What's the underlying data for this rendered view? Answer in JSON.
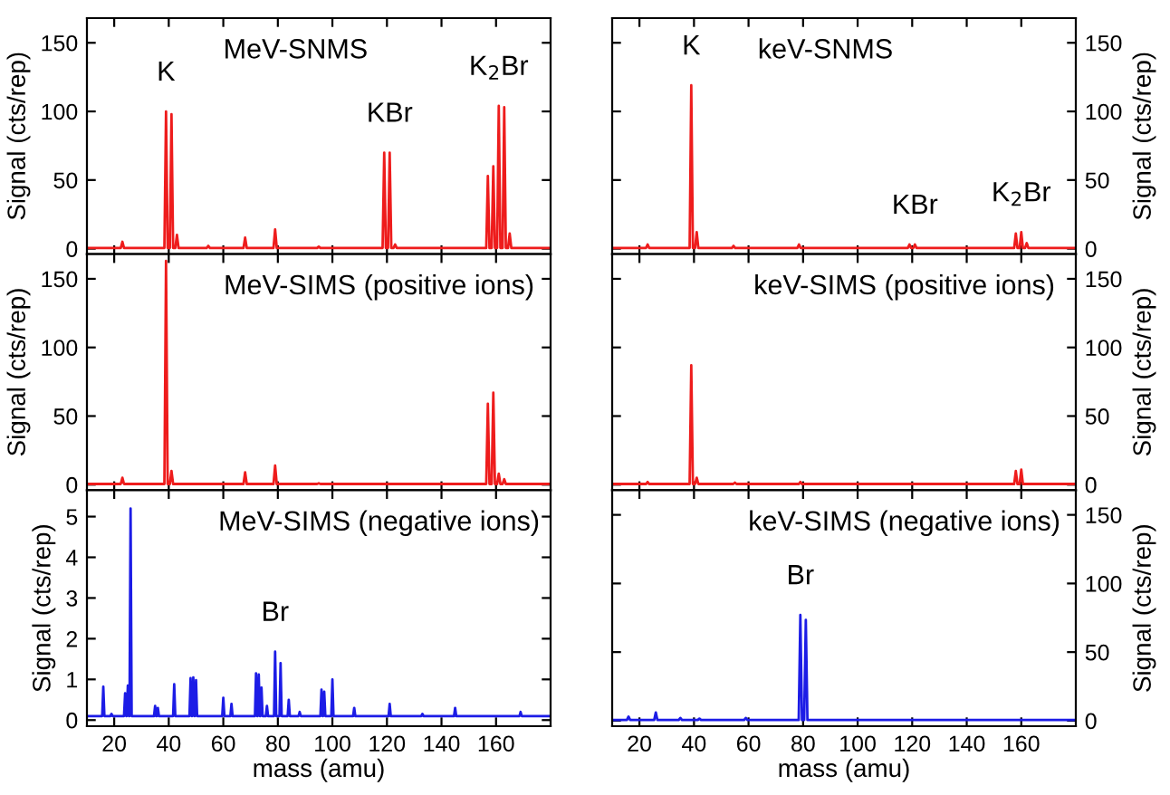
{
  "chart_data": [
    {
      "type": "line",
      "title": "MeV-SNMS",
      "ylabel": "Signal (cts/rep)",
      "xlim": [
        10,
        180
      ],
      "xticks": [
        {
          "value": 20,
          "label": null
        },
        {
          "value": 40,
          "label": null
        },
        {
          "value": 60,
          "label": null
        },
        {
          "value": 80,
          "label": null
        },
        {
          "value": 100,
          "label": null
        },
        {
          "value": 120,
          "label": null
        },
        {
          "value": 140,
          "label": null
        },
        {
          "value": 160,
          "label": null
        }
      ],
      "ylim": [
        -4,
        168
      ],
      "yticks": [
        0,
        50,
        100,
        150
      ],
      "tick_labels": "y",
      "grid": false,
      "legend": false,
      "annotations": [
        {
          "text": "K",
          "x": 39,
          "y": 100
        },
        {
          "text": "KBr",
          "x": 121,
          "y": 70
        },
        {
          "text": "K$_{2}$Br",
          "x": 161,
          "y": 104
        }
      ],
      "series": [
        {
          "color": "#ee1c1c",
          "x": [
            10,
            22.4,
            23,
            23.6,
            38.4,
            39,
            39.6,
            40.4,
            41,
            41.6,
            42.4,
            43,
            43.6,
            53.9,
            54.5,
            55.1,
            67.4,
            68,
            68.6,
            78.4,
            79,
            79.6,
            94.4,
            95,
            95.6,
            118.4,
            119,
            119.6,
            120.4,
            121,
            121.6,
            122.4,
            123,
            123.6,
            156.4,
            157,
            157.6,
            158.4,
            159,
            159.6,
            160.4,
            161,
            161.6,
            162.4,
            163,
            163.6,
            164.4,
            165,
            165.6,
            180
          ],
          "values": [
            0.5,
            0.5,
            5,
            0.5,
            0.5,
            100,
            0.5,
            0.5,
            98,
            0.5,
            0.5,
            10,
            0.5,
            0.5,
            2,
            0.5,
            0.5,
            8,
            0.5,
            0.5,
            14,
            0.5,
            0.5,
            1.5,
            0.5,
            0.5,
            70,
            0.5,
            0.5,
            70,
            0.5,
            0.5,
            3,
            0.5,
            0.5,
            53,
            0.5,
            0.5,
            60,
            0.5,
            0.5,
            104,
            0.5,
            0.5,
            103,
            0.5,
            0.5,
            11,
            0.5,
            0.5
          ]
        }
      ]
    },
    {
      "type": "line",
      "title": "keV-SNMS",
      "ylabel": "Signal (cts/rep)",
      "xlim": [
        10,
        180
      ],
      "xticks": [
        {
          "value": 20,
          "label": null
        },
        {
          "value": 40,
          "label": null
        },
        {
          "value": 60,
          "label": null
        },
        {
          "value": 80,
          "label": null
        },
        {
          "value": 100,
          "label": null
        },
        {
          "value": 120,
          "label": null
        },
        {
          "value": 140,
          "label": null
        },
        {
          "value": 160,
          "label": null
        }
      ],
      "ylim": [
        -4,
        168
      ],
      "yticks": [
        0,
        50,
        100,
        150
      ],
      "tick_labels": "y",
      "grid": false,
      "legend": false,
      "annotations": [
        {
          "text": "K",
          "x": 39,
          "y": 119
        },
        {
          "text": "KBr",
          "x": 121,
          "y": 3
        },
        {
          "text": "K$_{2}$Br",
          "x": 160,
          "y": 12
        }
      ],
      "series": [
        {
          "color": "#ee1c1c",
          "x": [
            10,
            22.4,
            23,
            23.6,
            38.4,
            39,
            39.6,
            40.4,
            41,
            41.6,
            53.9,
            54.5,
            55.1,
            77.9,
            78.5,
            79.1,
            118.4,
            119,
            119.6,
            120.4,
            121,
            121.6,
            157.4,
            158,
            158.6,
            159.4,
            160,
            160.6,
            161.4,
            162,
            162.6,
            180
          ],
          "values": [
            0.5,
            0.5,
            3,
            0.5,
            0.5,
            119,
            0.5,
            0.5,
            12,
            0.5,
            0.5,
            2,
            0.5,
            0.5,
            3,
            0.5,
            0.5,
            3,
            0.5,
            0.5,
            3,
            0.5,
            0.5,
            11,
            0.5,
            0.5,
            12,
            0.5,
            0.5,
            4,
            0.5,
            0.5
          ]
        }
      ]
    },
    {
      "type": "line",
      "title": "MeV-SIMS (positive ions)",
      "ylabel": "Signal (cts/rep)",
      "xlim": [
        10,
        180
      ],
      "xticks": [
        {
          "value": 20,
          "label": null
        },
        {
          "value": 40,
          "label": null
        },
        {
          "value": 60,
          "label": null
        },
        {
          "value": 80,
          "label": null
        },
        {
          "value": 100,
          "label": null
        },
        {
          "value": 120,
          "label": null
        },
        {
          "value": 140,
          "label": null
        },
        {
          "value": 160,
          "label": null
        }
      ],
      "ylim": [
        -4,
        168
      ],
      "yticks": [
        0,
        50,
        100,
        150
      ],
      "tick_labels": "y",
      "grid": false,
      "legend": false,
      "series": [
        {
          "color": "#ee1c1c",
          "x": [
            10,
            22.4,
            23,
            23.6,
            38.4,
            39,
            39.6,
            40.4,
            41,
            41.6,
            67.4,
            68,
            68.6,
            78.4,
            79,
            79.6,
            94.4,
            95,
            95.6,
            156.4,
            157,
            157.6,
            158.4,
            159,
            159.6,
            160.4,
            161,
            161.6,
            162.4,
            163,
            163.6,
            180
          ],
          "values": [
            0.5,
            0.5,
            5,
            0.5,
            0.5,
            163,
            0.5,
            0.5,
            10,
            0.5,
            0.5,
            9,
            0.5,
            0.5,
            14,
            0.5,
            0.5,
            1,
            0.5,
            0.5,
            59,
            0.5,
            0.5,
            67,
            0.5,
            0.5,
            8,
            0.5,
            0.5,
            4,
            0.5,
            0.5
          ]
        }
      ]
    },
    {
      "type": "line",
      "title": "keV-SIMS (positive ions)",
      "ylabel": "Signal (cts/rep)",
      "xlim": [
        10,
        180
      ],
      "xticks": [
        {
          "value": 20,
          "label": null
        },
        {
          "value": 40,
          "label": null
        },
        {
          "value": 60,
          "label": null
        },
        {
          "value": 80,
          "label": null
        },
        {
          "value": 100,
          "label": null
        },
        {
          "value": 120,
          "label": null
        },
        {
          "value": 140,
          "label": null
        },
        {
          "value": 160,
          "label": null
        }
      ],
      "ylim": [
        -4,
        168
      ],
      "yticks": [
        0,
        50,
        100,
        150
      ],
      "tick_labels": "y",
      "grid": false,
      "legend": false,
      "series": [
        {
          "color": "#ee1c1c",
          "x": [
            10,
            22.4,
            23,
            23.6,
            38.4,
            39,
            39.6,
            40.4,
            41,
            41.6,
            54.4,
            55,
            55.6,
            78.4,
            79,
            79.6,
            157.4,
            158,
            158.6,
            159.4,
            160,
            160.6,
            180
          ],
          "values": [
            0.5,
            0.5,
            2,
            0.5,
            0.5,
            87,
            0.5,
            0.5,
            5,
            0.5,
            0.5,
            1.5,
            0.5,
            0.5,
            2,
            0.5,
            0.5,
            10,
            0.5,
            0.5,
            11,
            0.5,
            0.5
          ]
        }
      ]
    },
    {
      "type": "line",
      "title": "MeV-SIMS (negative ions)",
      "xlabel": "mass (amu)",
      "ylabel": "Signal (cts/rep)",
      "xlim": [
        10,
        180
      ],
      "xticks": [
        20,
        40,
        60,
        80,
        100,
        120,
        140,
        160
      ],
      "ylim": [
        -0.15,
        5.65
      ],
      "yticks": [
        0,
        1,
        2,
        3,
        4,
        5
      ],
      "grid": false,
      "legend": false,
      "annotations": [
        {
          "text": "Br",
          "x": 79,
          "y": 1.68
        }
      ],
      "series": [
        {
          "color": "#1c1ce6",
          "x": [
            10,
            15.6,
            16,
            16.4,
            18.6,
            19,
            19.4,
            23.6,
            24,
            24.4,
            24.6,
            25,
            25.4,
            25.6,
            26,
            26.4,
            34.6,
            35,
            35.4,
            35.6,
            36,
            36.4,
            41.6,
            42,
            42.4,
            47.6,
            48,
            48.4,
            48.6,
            49,
            49.4,
            49.6,
            50,
            50.4,
            59.6,
            60,
            60.4,
            62.6,
            63,
            63.4,
            71.6,
            72,
            72.4,
            72.6,
            73,
            73.4,
            73.6,
            74,
            74.4,
            75.6,
            76,
            76.4,
            78.6,
            79,
            79.4,
            80.6,
            81,
            81.4,
            83.6,
            84,
            84.4,
            87.6,
            88,
            88.4,
            95.6,
            96,
            96.4,
            96.6,
            97,
            97.4,
            99.6,
            100,
            100.4,
            107.6,
            108,
            108.4,
            120.6,
            121,
            121.4,
            132.6,
            133,
            133.4,
            144.6,
            145,
            145.4,
            168.6,
            169,
            169.4,
            180
          ],
          "values": [
            0.1,
            0.1,
            0.82,
            0.1,
            0.1,
            0.15,
            0.1,
            0.1,
            0.66,
            0.1,
            0.1,
            0.85,
            0.1,
            0.1,
            5.2,
            0.1,
            0.1,
            0.35,
            0.1,
            0.1,
            0.3,
            0.1,
            0.1,
            0.88,
            0.1,
            0.1,
            1.03,
            0.1,
            0.1,
            1.05,
            0.1,
            0.1,
            0.98,
            0.1,
            0.1,
            0.55,
            0.1,
            0.1,
            0.4,
            0.1,
            0.1,
            1.15,
            0.1,
            0.1,
            1.12,
            0.1,
            0.1,
            0.8,
            0.1,
            0.1,
            0.35,
            0.1,
            0.1,
            1.68,
            0.1,
            0.1,
            1.4,
            0.1,
            0.1,
            0.5,
            0.1,
            0.1,
            0.2,
            0.1,
            0.1,
            0.75,
            0.1,
            0.1,
            0.7,
            0.1,
            0.1,
            1.0,
            0.1,
            0.1,
            0.3,
            0.1,
            0.1,
            0.4,
            0.1,
            0.1,
            0.15,
            0.1,
            0.1,
            0.3,
            0.1,
            0.1,
            0.2,
            0.1,
            0.1
          ]
        }
      ]
    },
    {
      "type": "line",
      "title": "keV-SIMS (negative ions)",
      "xlabel": "mass (amu)",
      "ylabel": "Signal (cts/rep)",
      "xlim": [
        10,
        180
      ],
      "xticks": [
        20,
        40,
        60,
        80,
        100,
        120,
        140,
        160
      ],
      "ylim": [
        -4,
        168
      ],
      "yticks": [
        0,
        50,
        100,
        150
      ],
      "grid": false,
      "legend": false,
      "annotations": [
        {
          "text": "Br",
          "x": 79,
          "y": 77
        }
      ],
      "series": [
        {
          "color": "#1c1ce6",
          "x": [
            10,
            15.4,
            16,
            16.6,
            25.4,
            26,
            26.6,
            34.4,
            35,
            35.6,
            41.4,
            42,
            42.6,
            58.4,
            59,
            59.6,
            78.4,
            79,
            79.6,
            80.4,
            81,
            81.6,
            180
          ],
          "values": [
            0.5,
            0.5,
            3,
            0.5,
            0.5,
            6,
            0.5,
            0.5,
            2,
            0.5,
            0.5,
            1.5,
            0.5,
            0.5,
            2,
            0.5,
            0.5,
            77,
            0.5,
            0.5,
            73.5,
            0.5,
            0.5
          ]
        }
      ]
    }
  ]
}
